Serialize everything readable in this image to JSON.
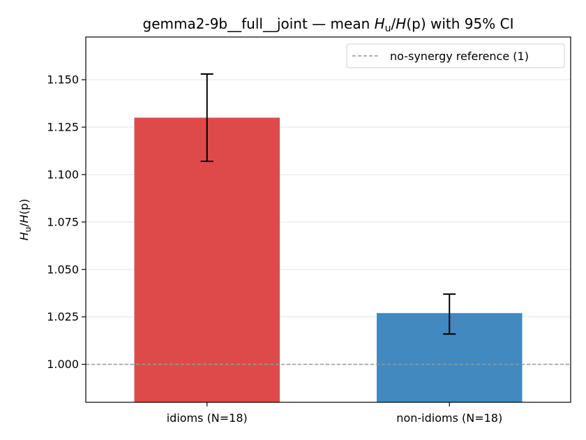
{
  "chart_data": {
    "type": "bar",
    "title": "gemma2-9b__full__joint — mean H_u/H(p) with 95% CI",
    "title_parts": {
      "prefix": "gemma2-9b__full__joint — mean ",
      "h": "H",
      "sub": "u",
      "mid": "/",
      "hp": "H",
      "paren": "(p)",
      "suffix": " with 95% CI"
    },
    "ylabel": "H_u/H(p)",
    "ylabel_parts": {
      "h": "H",
      "sub": "u",
      "mid": "/",
      "hp": "H",
      "paren": "(p)"
    },
    "xlabel": "",
    "categories": [
      "idioms (N=18)",
      "non-idioms (N=18)"
    ],
    "values": [
      1.13,
      1.027
    ],
    "ci_low": [
      1.107,
      1.016
    ],
    "ci_high": [
      1.153,
      1.037
    ],
    "colors": [
      "#de4a4a",
      "#4189bf"
    ],
    "ylim": [
      0.98,
      1.1725
    ],
    "yticks": [
      1.0,
      1.025,
      1.05,
      1.075,
      1.1,
      1.125,
      1.15
    ],
    "ytick_labels": [
      "1.000",
      "1.025",
      "1.050",
      "1.075",
      "1.100",
      "1.125",
      "1.150"
    ],
    "reference": {
      "value": 1.0,
      "label": "no-synergy reference (1)",
      "color": "#999999"
    },
    "grid": true,
    "legend_position": "top-right"
  }
}
